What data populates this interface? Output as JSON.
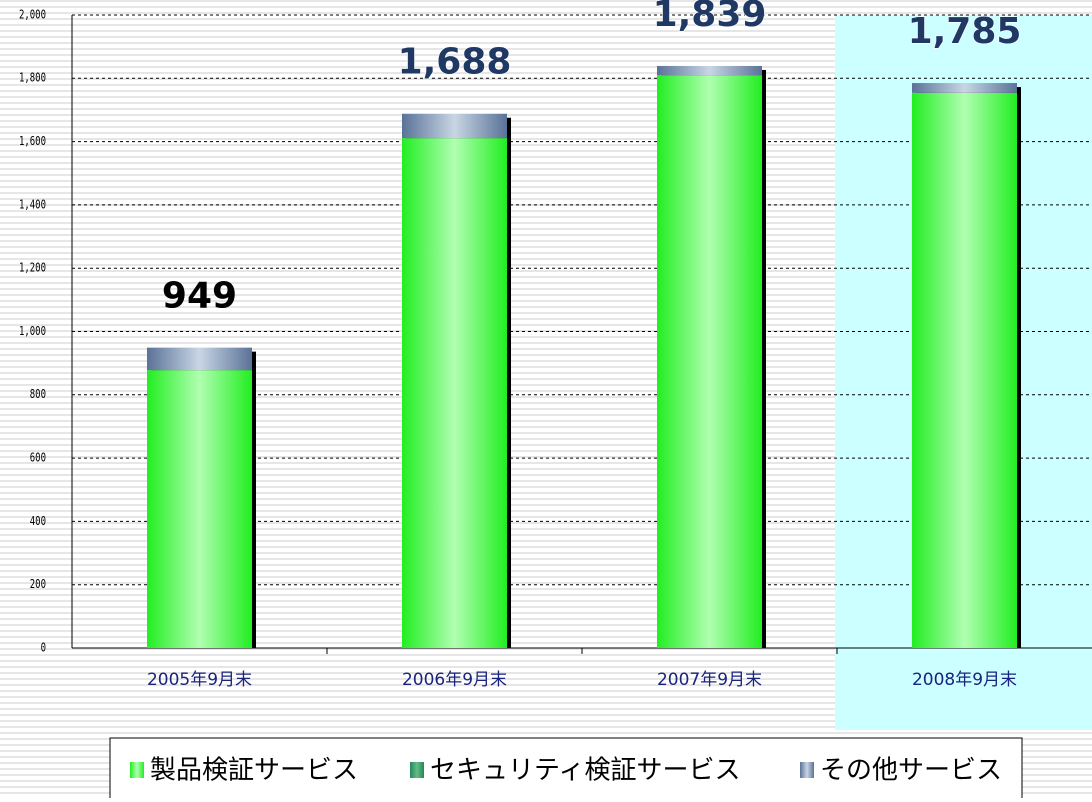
{
  "chart_data": {
    "type": "stacked_bar",
    "categories": [
      "2005年9月末",
      "2006年9月末",
      "2007年9月末",
      "2008年9月末"
    ],
    "series": [
      {
        "name": "製品検証サービス",
        "color": "#33ff33",
        "values": [
          878,
          1611,
          1810,
          1754
        ]
      },
      {
        "name": "セキュリティ検証サービス",
        "color": "#339966",
        "values": [
          0,
          0,
          0,
          0
        ]
      },
      {
        "name": "その他サービス",
        "color": "#7f96b8",
        "values": [
          71,
          77,
          29,
          31
        ]
      }
    ],
    "totals": [
      949,
      1688,
      1839,
      1785
    ],
    "total_labels": [
      "949",
      "1,688",
      "1,839",
      "1,785"
    ],
    "ylim": [
      0,
      2000
    ],
    "yticks": [
      0,
      200,
      400,
      600,
      800,
      {
        "value": 1000,
        "label": "1,000"
      },
      {
        "value": 1200,
        "label": "1,200"
      },
      {
        "value": 1400,
        "label": "1,400"
      },
      {
        "value": 1600,
        "label": "1,600"
      },
      {
        "value": 1800,
        "label": "1,800"
      },
      {
        "value": 2000,
        "label": "2,000"
      }
    ],
    "grid": true
  }
}
